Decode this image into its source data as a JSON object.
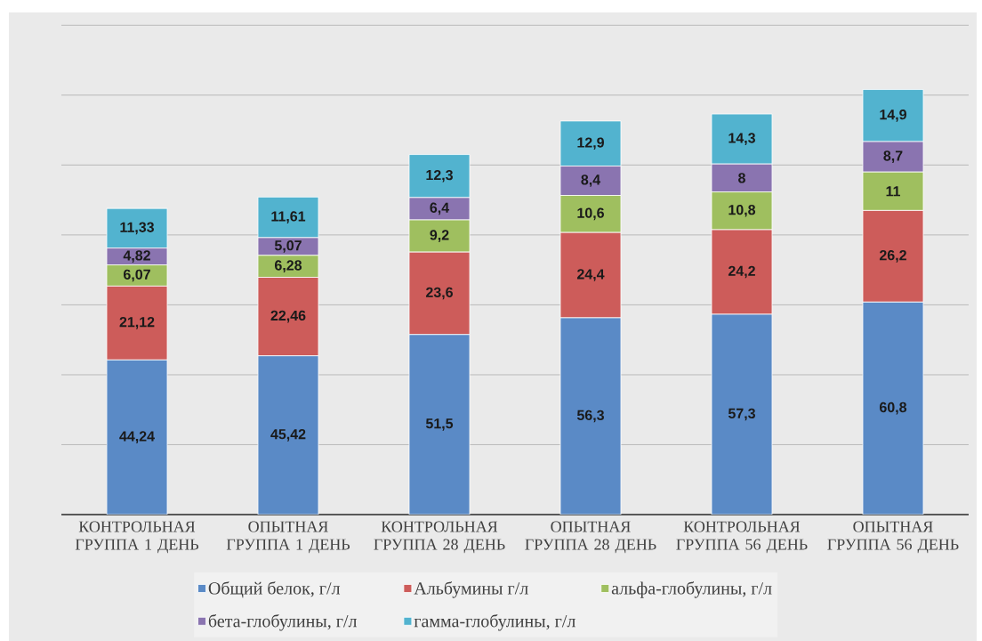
{
  "chart_data": {
    "type": "bar",
    "stacked": true,
    "categories": [
      "КОНТРОЛЬНАЯ ГРУППА 1 ДЕНЬ",
      "ОПЫТНАЯ ГРУППА 1 ДЕНЬ",
      "КОНТРОЛЬНАЯ ГРУППА 28 ДЕНЬ",
      "ОПЫТНАЯ ГРУППА 28 ДЕНЬ",
      "КОНТРОЛЬНАЯ ГРУППА 56 ДЕНЬ",
      "ОПЫТНАЯ ГРУППА 56 ДЕНЬ"
    ],
    "series": [
      {
        "name": "Общий белок, г/л",
        "color": "#5a8ac6",
        "values": [
          44.24,
          45.42,
          51.5,
          56.3,
          57.3,
          60.8
        ],
        "value_labels": [
          "44,24",
          "45,42",
          "51,5",
          "56,3",
          "57,3",
          "60,8"
        ]
      },
      {
        "name": "Альбумины г/л",
        "color": "#cd5c5a",
        "values": [
          21.12,
          22.46,
          23.6,
          24.4,
          24.2,
          26.2
        ],
        "value_labels": [
          "21,12",
          "22,46",
          "23,6",
          "24,4",
          "24,2",
          "26,2"
        ]
      },
      {
        "name": "альфа-глобулины, г/л",
        "color": "#9fbf5f",
        "values": [
          6.07,
          6.28,
          9.2,
          10.6,
          10.8,
          11
        ],
        "value_labels": [
          "6,07",
          "6,28",
          "9,2",
          "10,6",
          "10,8",
          "11"
        ]
      },
      {
        "name": "бета-глобулины, г/л",
        "color": "#8a74b0",
        "values": [
          4.82,
          5.07,
          6.4,
          8.4,
          8,
          8.7
        ],
        "value_labels": [
          "4,82",
          "5,07",
          "6,4",
          "8,4",
          "8",
          "8,7"
        ]
      },
      {
        "name": "гамма-глобулины, г/л",
        "color": "#52b3cf",
        "values": [
          11.33,
          11.61,
          12.3,
          12.9,
          14.3,
          14.9
        ],
        "value_labels": [
          "11,33",
          "11,61",
          "12,3",
          "12,9",
          "14,3",
          "14,9"
        ]
      }
    ],
    "tick_labels": "x",
    "grid": "y",
    "legend": "bottom"
  }
}
